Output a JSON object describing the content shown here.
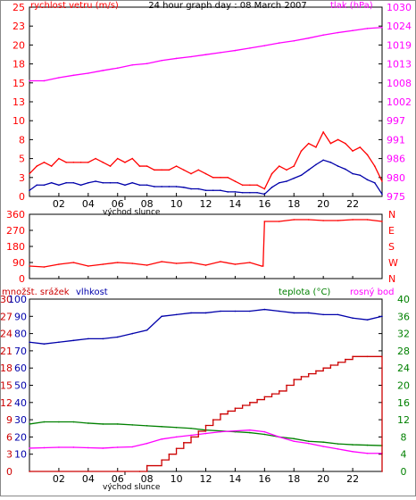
{
  "colors": {
    "wind": "#ff0000",
    "gust_dark": "#0000aa",
    "pressure": "#ff00ff",
    "direction": "#ff0000",
    "humidity": "#0000aa",
    "temperature": "#008000",
    "dewpoint": "#ff00ff",
    "rain": "#cc0000",
    "frame": "#000000",
    "bg": "#ffffff"
  },
  "chart_data": [
    {
      "id": "wind-pressure",
      "type": "line",
      "title": "24 hour graph day : 08 March 2007",
      "left_axis_label": "rychlost vetru (m/s)",
      "right_axis_label": "tlak (hPa)",
      "left_ticks": [
        "0",
        "3",
        "5",
        "8",
        "10",
        "13",
        "15",
        "18",
        "20",
        "23",
        "25"
      ],
      "left_ylim": [
        0,
        25
      ],
      "right_ticks": [
        "975",
        "980",
        "986",
        "991",
        "997",
        "1002",
        "1008",
        "1013",
        "1019",
        "1024",
        "1030"
      ],
      "right_ylim": [
        975,
        1030
      ],
      "x_ticks": [
        "02",
        "04",
        "06",
        "08",
        "10",
        "12",
        "14",
        "16",
        "18",
        "20",
        "22"
      ],
      "xlim": [
        0,
        24
      ],
      "x_note": "východ slunce",
      "grid": false,
      "series": [
        {
          "color_key": "wind",
          "axis": "left",
          "x": [
            0,
            0.5,
            1,
            1.5,
            2,
            2.5,
            3,
            3.5,
            4,
            4.5,
            5,
            5.5,
            6,
            6.5,
            7,
            7.5,
            8,
            8.5,
            9,
            9.5,
            10,
            10.5,
            11,
            11.5,
            12,
            12.5,
            13,
            13.5,
            14,
            14.5,
            15,
            15.5,
            16,
            16.5,
            17,
            17.5,
            18,
            18.5,
            19,
            19.5,
            20,
            20.5,
            21,
            21.5,
            22,
            22.5,
            23,
            23.5,
            24
          ],
          "values": [
            3,
            4,
            4.5,
            4,
            5,
            4.5,
            4.5,
            4.5,
            4.5,
            5,
            4.5,
            4,
            5,
            4.5,
            5,
            4,
            4,
            3.5,
            3.5,
            3.5,
            4,
            3.5,
            3,
            3.5,
            3,
            2.5,
            2.5,
            2.5,
            2,
            1.5,
            1.5,
            1.5,
            1,
            3,
            4,
            3.5,
            4,
            6,
            7,
            6.5,
            8.5,
            7,
            7.5,
            7,
            6,
            6.5,
            5.5,
            4,
            2
          ]
        },
        {
          "color_key": "gust_dark",
          "axis": "left",
          "x": [
            0,
            0.5,
            1,
            1.5,
            2,
            2.5,
            3,
            3.5,
            4,
            4.5,
            5,
            5.5,
            6,
            6.5,
            7,
            7.5,
            8,
            8.5,
            9,
            9.5,
            10,
            10.5,
            11,
            11.5,
            12,
            12.5,
            13,
            13.5,
            14,
            14.5,
            15,
            15.5,
            16,
            16.5,
            17,
            17.5,
            18,
            18.5,
            19,
            19.5,
            20,
            20.5,
            21,
            21.5,
            22,
            22.5,
            23,
            23.5,
            24
          ],
          "values": [
            0.8,
            1.5,
            1.5,
            1.8,
            1.5,
            1.8,
            1.8,
            1.5,
            1.8,
            2,
            1.8,
            1.8,
            1.8,
            1.5,
            1.8,
            1.5,
            1.5,
            1.3,
            1.3,
            1.3,
            1.3,
            1.2,
            1,
            1,
            0.8,
            0.8,
            0.8,
            0.6,
            0.6,
            0.5,
            0.5,
            0.5,
            0.3,
            1.2,
            1.8,
            2,
            2.4,
            2.8,
            3.5,
            4.2,
            4.8,
            4.5,
            4,
            3.6,
            3,
            2.8,
            2.2,
            1.8,
            0.3
          ]
        },
        {
          "color_key": "pressure",
          "axis": "right",
          "x": [
            0,
            1,
            2,
            3,
            4,
            5,
            6,
            7,
            8,
            9,
            10,
            11,
            12,
            13,
            14,
            15,
            16,
            17,
            18,
            19,
            20,
            21,
            22,
            23,
            24
          ],
          "values": [
            1008.6,
            1008.6,
            1009.5,
            1010.2,
            1010.8,
            1011.6,
            1012.3,
            1013.2,
            1013.6,
            1014.5,
            1015.1,
            1015.6,
            1016.2,
            1016.8,
            1017.4,
            1018.1,
            1018.8,
            1019.6,
            1020.2,
            1021,
            1021.9,
            1022.6,
            1023.2,
            1023.8,
            1024.1
          ]
        }
      ]
    },
    {
      "id": "wind-direction",
      "type": "line",
      "left_ticks": [
        "0",
        "90",
        "180",
        "270",
        "360"
      ],
      "right_ticks": [
        "N",
        "W",
        "S",
        "E",
        "N"
      ],
      "ylim": [
        0,
        360
      ],
      "xlim": [
        0,
        24
      ],
      "grid": false,
      "series": [
        {
          "color_key": "direction",
          "x": [
            0,
            1,
            2,
            3,
            4,
            5,
            6,
            7,
            8,
            9,
            10,
            11,
            12,
            13,
            14,
            15,
            15.8,
            15.9,
            16,
            17,
            18,
            19,
            20,
            21,
            22,
            23,
            24
          ],
          "values": [
            70,
            65,
            80,
            90,
            70,
            80,
            90,
            85,
            75,
            95,
            85,
            90,
            75,
            95,
            80,
            90,
            70,
            70,
            320,
            320,
            330,
            330,
            325,
            325,
            330,
            330,
            320
          ]
        }
      ]
    },
    {
      "id": "humidity-temp-rain",
      "type": "line",
      "left_label_rain": "množšt. srážek",
      "left_label_humidity": "vlhkost",
      "right_label_temp": "teplota (°C)",
      "right_label_dew": "rosný bod",
      "rain_ticks": [
        "0",
        "3",
        "6",
        "9",
        "12",
        "15",
        "18",
        "21",
        "24",
        "27",
        "30"
      ],
      "rain_ylim": [
        0,
        30
      ],
      "humidity_ticks": [
        "10",
        "20",
        "30",
        "40",
        "50",
        "60",
        "70",
        "80",
        "90",
        "100"
      ],
      "humidity_ylim": [
        0,
        100
      ],
      "temp_ticks": [
        "0",
        "4",
        "8",
        "12",
        "16",
        "20",
        "24",
        "28",
        "32",
        "36",
        "40"
      ],
      "temp_ylim": [
        0,
        40
      ],
      "x_ticks": [
        "02",
        "04",
        "06",
        "08",
        "10",
        "12",
        "14",
        "16",
        "18",
        "20",
        "22"
      ],
      "xlim": [
        0,
        24
      ],
      "x_note": "východ slunce",
      "grid": false,
      "series": [
        {
          "color_key": "humidity",
          "axis": "humidity",
          "x": [
            0,
            1,
            2,
            3,
            4,
            5,
            6,
            7,
            8,
            9,
            10,
            11,
            12,
            13,
            14,
            15,
            16,
            17,
            18,
            19,
            20,
            21,
            22,
            23,
            24
          ],
          "values": [
            75,
            74,
            75,
            76,
            77,
            77,
            78,
            80,
            82,
            90,
            91,
            92,
            92,
            93,
            93,
            93,
            94,
            93,
            92,
            92,
            91,
            91,
            89,
            88,
            90
          ]
        },
        {
          "color_key": "temperature",
          "axis": "temp",
          "x": [
            0,
            1,
            2,
            3,
            4,
            5,
            6,
            7,
            8,
            9,
            10,
            11,
            12,
            13,
            14,
            15,
            16,
            17,
            18,
            19,
            20,
            21,
            22,
            23,
            24
          ],
          "values": [
            11,
            11.5,
            11.5,
            11.5,
            11.2,
            11,
            11,
            10.8,
            10.6,
            10.4,
            10.2,
            10,
            9.6,
            9.4,
            9.2,
            9,
            8.6,
            8,
            7.6,
            7,
            6.8,
            6.4,
            6.2,
            6.1,
            6
          ]
        },
        {
          "color_key": "dewpoint",
          "axis": "temp",
          "x": [
            0,
            1,
            2,
            3,
            4,
            5,
            6,
            7,
            8,
            9,
            10,
            11,
            12,
            13,
            14,
            15,
            16,
            17,
            18,
            19,
            20,
            21,
            22,
            23,
            24
          ],
          "values": [
            5.4,
            5.5,
            5.6,
            5.6,
            5.5,
            5.4,
            5.6,
            5.7,
            6.5,
            7.5,
            8,
            8.4,
            8.8,
            9.2,
            9.4,
            9.6,
            9.2,
            8,
            7,
            6.5,
            5.8,
            5.2,
            4.6,
            4.2,
            4.2
          ]
        },
        {
          "color_key": "rain",
          "axis": "rain",
          "step": true,
          "x": [
            0,
            7.5,
            8,
            9,
            9.5,
            10,
            10.5,
            11,
            11.5,
            12,
            12.5,
            13,
            13.5,
            14,
            14.5,
            15,
            15.5,
            16,
            16.5,
            17,
            17.5,
            18,
            18.5,
            19,
            19.5,
            20,
            20.5,
            21,
            21.5,
            22,
            23,
            24
          ],
          "values": [
            0,
            0,
            1,
            2,
            3,
            4,
            5,
            6,
            7,
            8,
            9,
            10,
            10.5,
            11,
            11.5,
            12,
            12.5,
            13,
            13.5,
            14,
            15,
            16,
            16.5,
            17,
            17.5,
            18,
            18.5,
            19,
            19.5,
            20,
            20,
            0
          ]
        }
      ]
    }
  ]
}
